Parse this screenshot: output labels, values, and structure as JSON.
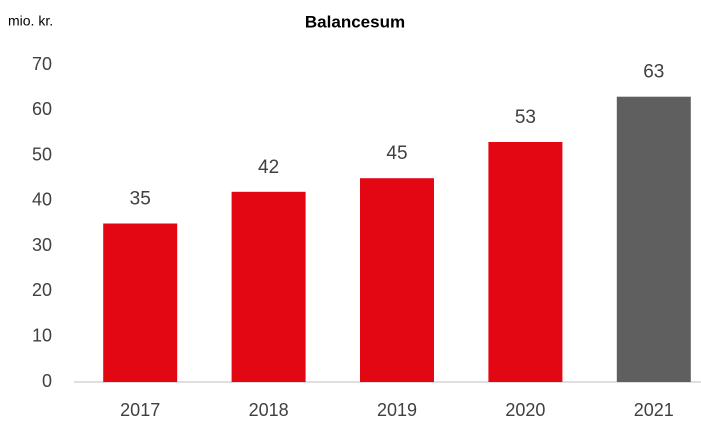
{
  "chart_data": {
    "type": "bar",
    "title": "Balancesum",
    "y_label": "mio. kr.",
    "categories": [
      "2017",
      "2018",
      "2019",
      "2020",
      "2021"
    ],
    "values": [
      35,
      42,
      45,
      53,
      63
    ],
    "colors": [
      "#e30613",
      "#e30613",
      "#e30613",
      "#e30613",
      "#5f5f5f"
    ],
    "ylim": [
      0,
      70
    ],
    "yticks": [
      0,
      10,
      20,
      30,
      40,
      50,
      60,
      70
    ],
    "grid": false
  }
}
